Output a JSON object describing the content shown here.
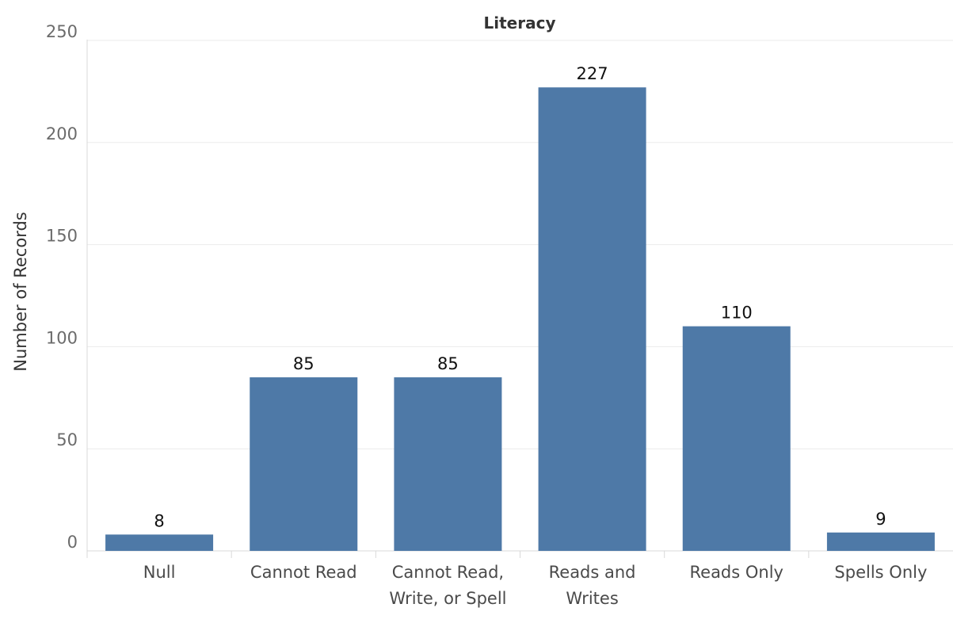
{
  "chart_data": {
    "type": "bar",
    "title": "Literacy",
    "xlabel": "",
    "ylabel": "Number of Records",
    "categories": [
      [
        "Null"
      ],
      [
        "Cannot Read"
      ],
      [
        "Cannot Read,",
        "Write, or Spell"
      ],
      [
        "Reads and",
        "Writes"
      ],
      [
        "Reads Only"
      ],
      [
        "Spells Only"
      ]
    ],
    "values": [
      8,
      85,
      85,
      227,
      110,
      9
    ],
    "ylim": [
      0,
      250
    ],
    "yticks": [
      0,
      50,
      100,
      150,
      200,
      250
    ],
    "grid": true,
    "bar_color": "#4e79a7"
  }
}
